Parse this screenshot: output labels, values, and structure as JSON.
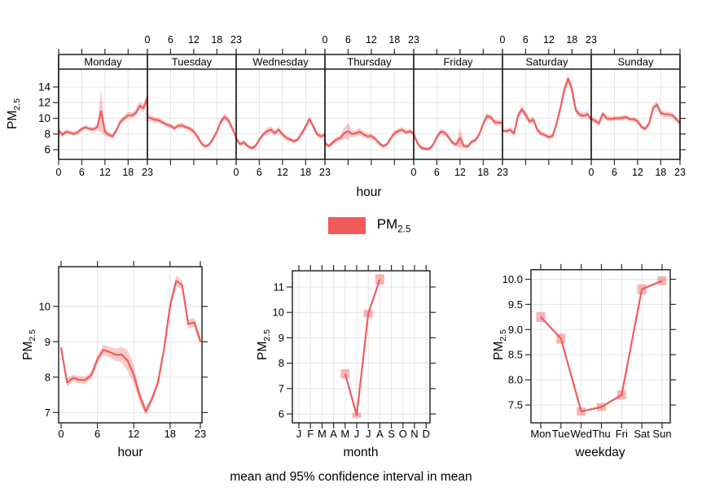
{
  "labels": {
    "pm_main": "PM",
    "pm_sub": "2.5"
  },
  "legend": {
    "label_main": "PM",
    "label_sub": "2.5"
  },
  "caption": "mean and 95% confidence interval in mean",
  "colors": {
    "line": "#f05c5c",
    "band": "rgba(240,92,92,0.32)",
    "square": "rgba(240,92,92,0.45)",
    "grid": "#e4e4e4",
    "frame": "#1a1a1a",
    "tick": "#2a2a2a",
    "background": "#ffffff"
  },
  "chart_data": [
    {
      "id": "day-hour-panel",
      "type": "line",
      "pollutant": "PM2.5",
      "xlabel": "hour",
      "ylabel": "PM2.5",
      "x_ticks": [
        0,
        6,
        12,
        18,
        23
      ],
      "y_ticks": [
        6,
        8,
        10,
        12,
        14
      ],
      "y_tick_labels": [
        "6",
        "8",
        "10",
        "12",
        "14"
      ],
      "ylim": [
        4.76,
        16.28
      ],
      "top_axis_labeled_days": [
        "Tuesday",
        "Thursday",
        "Saturday"
      ],
      "bottom_axis_labeled_days": [
        "Monday",
        "Wednesday",
        "Friday",
        "Sunday"
      ],
      "series": [
        {
          "day": "Monday",
          "mean": [
            8.4,
            7.9,
            8.3,
            8.15,
            8.0,
            8.25,
            8.65,
            8.85,
            8.65,
            8.6,
            8.85,
            10.9,
            8.25,
            7.9,
            7.7,
            8.5,
            9.55,
            10.0,
            10.4,
            10.35,
            10.7,
            11.6,
            11.3,
            12.65
          ],
          "ci95": [
            0.35,
            0.3,
            0.3,
            0.28,
            0.28,
            0.28,
            0.3,
            0.3,
            0.3,
            0.3,
            0.4,
            2.7,
            0.5,
            0.35,
            0.3,
            0.35,
            0.35,
            0.35,
            0.4,
            0.4,
            0.45,
            0.5,
            0.5,
            0.55
          ]
        },
        {
          "day": "Tuesday",
          "mean": [
            10.1,
            10.0,
            9.8,
            9.75,
            9.45,
            9.2,
            9.05,
            8.7,
            9.05,
            9.1,
            8.85,
            8.7,
            8.3,
            7.65,
            6.8,
            6.4,
            6.65,
            7.4,
            8.3,
            9.55,
            10.2,
            9.75,
            8.7,
            7.5
          ],
          "ci95": [
            0.45,
            0.4,
            0.38,
            0.35,
            0.32,
            0.3,
            0.3,
            0.3,
            0.3,
            0.3,
            0.3,
            0.3,
            0.3,
            0.3,
            0.28,
            0.25,
            0.25,
            0.28,
            0.3,
            0.35,
            0.4,
            0.38,
            0.32,
            0.3
          ]
        },
        {
          "day": "Wednesday",
          "mean": [
            7.4,
            6.7,
            6.95,
            6.45,
            6.2,
            6.45,
            7.25,
            7.95,
            8.35,
            8.55,
            8.1,
            8.55,
            7.95,
            7.5,
            7.3,
            7.05,
            7.3,
            8.1,
            8.95,
            9.9,
            8.95,
            7.95,
            7.7,
            7.9
          ],
          "ci95": [
            0.3,
            0.28,
            0.28,
            0.25,
            0.25,
            0.25,
            0.28,
            0.3,
            0.4,
            0.45,
            0.35,
            0.4,
            0.32,
            0.3,
            0.28,
            0.25,
            0.25,
            0.3,
            0.32,
            0.38,
            0.35,
            0.3,
            0.28,
            0.3
          ]
        },
        {
          "day": "Thursday",
          "mean": [
            6.85,
            6.45,
            6.9,
            7.3,
            7.5,
            8.1,
            8.35,
            8.0,
            8.1,
            8.3,
            7.95,
            7.7,
            7.75,
            7.4,
            6.85,
            6.45,
            6.65,
            7.4,
            8.1,
            8.35,
            8.55,
            8.2,
            8.35,
            8.05
          ],
          "ci95": [
            0.3,
            0.28,
            0.3,
            0.32,
            0.4,
            0.7,
            1.05,
            0.4,
            0.4,
            0.5,
            0.42,
            0.35,
            0.32,
            0.3,
            0.28,
            0.25,
            0.25,
            0.28,
            0.3,
            0.32,
            0.32,
            0.3,
            0.3,
            0.3
          ]
        },
        {
          "day": "Friday",
          "mean": [
            8.0,
            6.8,
            6.2,
            6.1,
            6.1,
            6.6,
            7.6,
            8.3,
            8.2,
            7.6,
            6.9,
            6.65,
            7.5,
            6.45,
            6.4,
            7.0,
            7.2,
            8.0,
            9.3,
            10.3,
            10.1,
            9.5,
            9.45,
            9.4
          ],
          "ci95": [
            0.35,
            0.3,
            0.28,
            0.25,
            0.25,
            0.28,
            0.32,
            0.38,
            0.35,
            0.3,
            0.28,
            0.28,
            1.25,
            0.3,
            0.28,
            0.28,
            0.28,
            0.3,
            0.35,
            0.4,
            0.38,
            0.35,
            0.35,
            0.35
          ]
        },
        {
          "day": "Saturday",
          "mean": [
            8.45,
            8.35,
            8.55,
            8.05,
            10.3,
            11.15,
            10.45,
            9.6,
            9.85,
            8.55,
            8.05,
            7.85,
            7.6,
            7.75,
            9.3,
            11.3,
            13.6,
            15.05,
            13.7,
            11.05,
            10.45,
            10.3,
            10.55,
            9.85
          ],
          "ci95": [
            0.3,
            0.3,
            0.32,
            0.3,
            0.45,
            0.5,
            0.45,
            0.38,
            0.4,
            0.32,
            0.3,
            0.28,
            0.28,
            0.3,
            0.4,
            0.5,
            0.55,
            0.6,
            0.55,
            0.45,
            0.4,
            0.38,
            0.4,
            0.35
          ]
        },
        {
          "day": "Sunday",
          "mean": [
            9.9,
            9.7,
            9.35,
            10.6,
            10.0,
            9.9,
            10.0,
            10.0,
            10.05,
            10.15,
            9.9,
            9.9,
            9.65,
            8.9,
            8.65,
            9.35,
            11.3,
            11.75,
            10.7,
            10.5,
            10.5,
            10.4,
            9.9,
            9.4
          ],
          "ci95": [
            0.35,
            0.35,
            0.4,
            0.35,
            0.32,
            0.32,
            0.3,
            0.3,
            0.32,
            0.3,
            0.3,
            0.3,
            0.3,
            0.3,
            0.3,
            0.32,
            0.38,
            0.45,
            0.4,
            0.35,
            0.35,
            0.35,
            0.32,
            0.3
          ]
        }
      ]
    },
    {
      "id": "diurnal-panel",
      "type": "line",
      "xlabel": "hour",
      "ylabel": "PM2.5",
      "x_ticks": [
        0,
        6,
        12,
        18,
        23
      ],
      "y_ticks": [
        7,
        8,
        9,
        10
      ],
      "y_tick_labels": [
        "7",
        "8",
        "9",
        "10"
      ],
      "ylim": [
        6.71,
        11.12
      ],
      "mean": [
        8.82,
        7.85,
        7.98,
        7.92,
        7.92,
        8.06,
        8.5,
        8.77,
        8.71,
        8.63,
        8.64,
        8.46,
        8.07,
        7.46,
        7.03,
        7.38,
        7.85,
        8.79,
        10.0,
        10.72,
        10.6,
        9.5,
        9.55,
        9.02
      ],
      "ci95": [
        0.12,
        0.12,
        0.1,
        0.1,
        0.1,
        0.1,
        0.12,
        0.15,
        0.15,
        0.18,
        0.22,
        0.3,
        0.25,
        0.18,
        0.12,
        0.1,
        0.1,
        0.1,
        0.12,
        0.15,
        0.13,
        0.12,
        0.13,
        0.12
      ]
    },
    {
      "id": "monthly-panel",
      "type": "line",
      "xlabel": "month",
      "ylabel": "PM2.5",
      "categories": [
        "J",
        "F",
        "M",
        "A",
        "M",
        "J",
        "J",
        "A",
        "S",
        "O",
        "N",
        "D"
      ],
      "y_ticks": [
        6,
        7,
        8,
        9,
        10,
        11
      ],
      "y_tick_labels": [
        "6",
        "7",
        "8",
        "9",
        "10",
        "11"
      ],
      "ylim": [
        5.65,
        11.64
      ],
      "mean": [
        null,
        null,
        null,
        null,
        7.58,
        5.95,
        9.95,
        11.3,
        null,
        null,
        null,
        null
      ],
      "ci95": [
        null,
        null,
        null,
        null,
        0.18,
        0.1,
        0.15,
        0.2,
        null,
        null,
        null,
        null
      ]
    },
    {
      "id": "weekday-panel",
      "type": "line",
      "xlabel": "weekday",
      "ylabel": "PM2.5",
      "categories": [
        "Mon",
        "Tue",
        "Wed",
        "Thu",
        "Fri",
        "Sat",
        "Sun"
      ],
      "y_ticks": [
        7.5,
        8.0,
        8.5,
        9.0,
        9.5,
        10.0
      ],
      "y_tick_labels": [
        "7.5",
        "8.0",
        "8.5",
        "9.0",
        "9.5",
        "10.0"
      ],
      "ylim": [
        7.145,
        10.19
      ],
      "mean": [
        9.25,
        8.82,
        7.37,
        7.46,
        7.7,
        9.8,
        9.97
      ],
      "ci95": [
        0.1,
        0.1,
        0.08,
        0.08,
        0.09,
        0.1,
        0.09
      ]
    }
  ]
}
